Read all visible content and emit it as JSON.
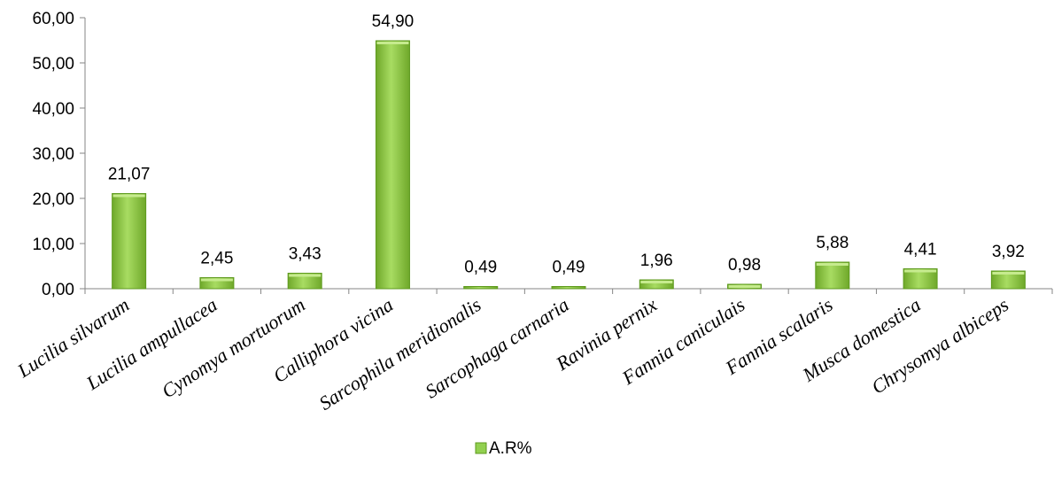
{
  "chart_data": {
    "type": "bar",
    "categories": [
      "Lucilia silvarum",
      "Lucilia ampullacea",
      "Cynomya mortuorum",
      "Calliphora vicina",
      "Sarcophila meridionalis",
      "Sarcophaga carnaria",
      "Ravinia pernix",
      "Fannia caniculais",
      "Fannia scalaris",
      "Musca domestica",
      "Chrysomya albiceps"
    ],
    "series": [
      {
        "name": "A.R%",
        "values": [
          21.07,
          2.45,
          3.43,
          54.9,
          0.49,
          0.49,
          1.96,
          0.98,
          5.88,
          4.41,
          3.92
        ],
        "labels": [
          "21,07",
          "2,45",
          "3,43",
          "54,90",
          "0,49",
          "0,49",
          "1,96",
          "0,98",
          "5,88",
          "4,41",
          "3,92"
        ]
      }
    ],
    "yticks": [
      "0,00",
      "10,00",
      "20,00",
      "30,00",
      "40,00",
      "50,00",
      "60,00"
    ],
    "ylim": [
      0,
      60
    ],
    "grid": false,
    "legend": "bottom",
    "bar_color": "#92D050",
    "bar_dark": "#5E9A1E",
    "bar_light": "#C6EB8E"
  }
}
